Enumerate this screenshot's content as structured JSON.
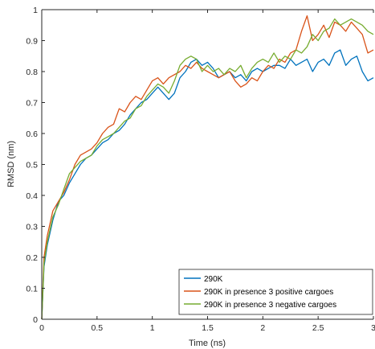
{
  "chart_data": {
    "type": "line",
    "xlabel": "Time (ns)",
    "ylabel": "RMSD (nm)",
    "xlim": [
      0,
      3
    ],
    "ylim": [
      0,
      1
    ],
    "xticks": [
      "0",
      "0.5",
      "1",
      "1.5",
      "2",
      "2.5",
      "3"
    ],
    "yticks": [
      "0",
      "0.1",
      "0.2",
      "0.3",
      "0.4",
      "0.5",
      "0.6",
      "0.7",
      "0.8",
      "0.9",
      "1"
    ],
    "grid": false,
    "legend_location": "bottom-right",
    "series": [
      {
        "name": "290K",
        "color": "#0072BD",
        "x": [
          0,
          0.02,
          0.05,
          0.1,
          0.15,
          0.2,
          0.25,
          0.3,
          0.35,
          0.4,
          0.45,
          0.5,
          0.55,
          0.6,
          0.65,
          0.7,
          0.75,
          0.8,
          0.85,
          0.9,
          0.95,
          1.0,
          1.05,
          1.1,
          1.15,
          1.2,
          1.25,
          1.3,
          1.35,
          1.4,
          1.45,
          1.5,
          1.55,
          1.6,
          1.65,
          1.7,
          1.75,
          1.8,
          1.85,
          1.9,
          1.95,
          2.0,
          2.05,
          2.1,
          2.15,
          2.2,
          2.25,
          2.3,
          2.35,
          2.4,
          2.45,
          2.5,
          2.55,
          2.6,
          2.65,
          2.7,
          2.75,
          2.8,
          2.85,
          2.9,
          2.95,
          3.0
        ],
        "values": [
          0.0,
          0.17,
          0.24,
          0.32,
          0.38,
          0.4,
          0.44,
          0.47,
          0.5,
          0.52,
          0.53,
          0.55,
          0.57,
          0.58,
          0.6,
          0.61,
          0.63,
          0.66,
          0.68,
          0.7,
          0.71,
          0.73,
          0.75,
          0.73,
          0.71,
          0.73,
          0.78,
          0.8,
          0.83,
          0.84,
          0.82,
          0.83,
          0.81,
          0.78,
          0.79,
          0.8,
          0.78,
          0.79,
          0.77,
          0.8,
          0.81,
          0.8,
          0.81,
          0.82,
          0.82,
          0.81,
          0.84,
          0.82,
          0.83,
          0.84,
          0.8,
          0.83,
          0.84,
          0.82,
          0.86,
          0.87,
          0.82,
          0.84,
          0.85,
          0.8,
          0.77,
          0.78
        ]
      },
      {
        "name": "290K in presence 3 positive cargoes",
        "color": "#D95319",
        "x": [
          0,
          0.02,
          0.05,
          0.1,
          0.15,
          0.2,
          0.25,
          0.3,
          0.35,
          0.4,
          0.45,
          0.5,
          0.55,
          0.6,
          0.65,
          0.7,
          0.75,
          0.8,
          0.85,
          0.9,
          0.95,
          1.0,
          1.05,
          1.1,
          1.15,
          1.2,
          1.25,
          1.3,
          1.35,
          1.4,
          1.45,
          1.5,
          1.55,
          1.6,
          1.65,
          1.7,
          1.75,
          1.8,
          1.85,
          1.9,
          1.95,
          2.0,
          2.05,
          2.1,
          2.15,
          2.2,
          2.25,
          2.3,
          2.35,
          2.4,
          2.45,
          2.5,
          2.55,
          2.6,
          2.65,
          2.7,
          2.75,
          2.8,
          2.85,
          2.9,
          2.95,
          3.0
        ],
        "values": [
          0.0,
          0.2,
          0.27,
          0.35,
          0.38,
          0.41,
          0.45,
          0.5,
          0.53,
          0.54,
          0.55,
          0.57,
          0.6,
          0.62,
          0.63,
          0.68,
          0.67,
          0.7,
          0.72,
          0.71,
          0.74,
          0.77,
          0.78,
          0.76,
          0.78,
          0.79,
          0.8,
          0.82,
          0.81,
          0.83,
          0.81,
          0.8,
          0.79,
          0.78,
          0.79,
          0.8,
          0.77,
          0.75,
          0.76,
          0.78,
          0.77,
          0.8,
          0.82,
          0.81,
          0.84,
          0.83,
          0.86,
          0.87,
          0.93,
          0.98,
          0.9,
          0.92,
          0.95,
          0.91,
          0.96,
          0.95,
          0.93,
          0.96,
          0.94,
          0.92,
          0.86,
          0.87
        ]
      },
      {
        "name": "290K in presence 3 negative cargoes",
        "color": "#77AC30",
        "x": [
          0,
          0.02,
          0.05,
          0.1,
          0.15,
          0.2,
          0.25,
          0.3,
          0.35,
          0.4,
          0.45,
          0.5,
          0.55,
          0.6,
          0.65,
          0.7,
          0.75,
          0.8,
          0.85,
          0.9,
          0.95,
          1.0,
          1.05,
          1.1,
          1.15,
          1.2,
          1.25,
          1.3,
          1.35,
          1.4,
          1.45,
          1.5,
          1.55,
          1.6,
          1.65,
          1.7,
          1.75,
          1.8,
          1.85,
          1.9,
          1.95,
          2.0,
          2.05,
          2.1,
          2.15,
          2.2,
          2.25,
          2.3,
          2.35,
          2.4,
          2.45,
          2.5,
          2.55,
          2.6,
          2.65,
          2.7,
          2.75,
          2.8,
          2.85,
          2.9,
          2.95,
          3.0
        ],
        "values": [
          0.0,
          0.18,
          0.25,
          0.33,
          0.37,
          0.42,
          0.47,
          0.49,
          0.51,
          0.52,
          0.53,
          0.56,
          0.58,
          0.59,
          0.6,
          0.62,
          0.64,
          0.65,
          0.68,
          0.69,
          0.72,
          0.74,
          0.76,
          0.75,
          0.73,
          0.77,
          0.82,
          0.84,
          0.85,
          0.84,
          0.8,
          0.82,
          0.8,
          0.81,
          0.79,
          0.81,
          0.8,
          0.82,
          0.78,
          0.81,
          0.83,
          0.84,
          0.83,
          0.86,
          0.83,
          0.85,
          0.84,
          0.87,
          0.86,
          0.88,
          0.92,
          0.9,
          0.93,
          0.94,
          0.97,
          0.95,
          0.96,
          0.97,
          0.96,
          0.95,
          0.93,
          0.92
        ]
      }
    ]
  }
}
